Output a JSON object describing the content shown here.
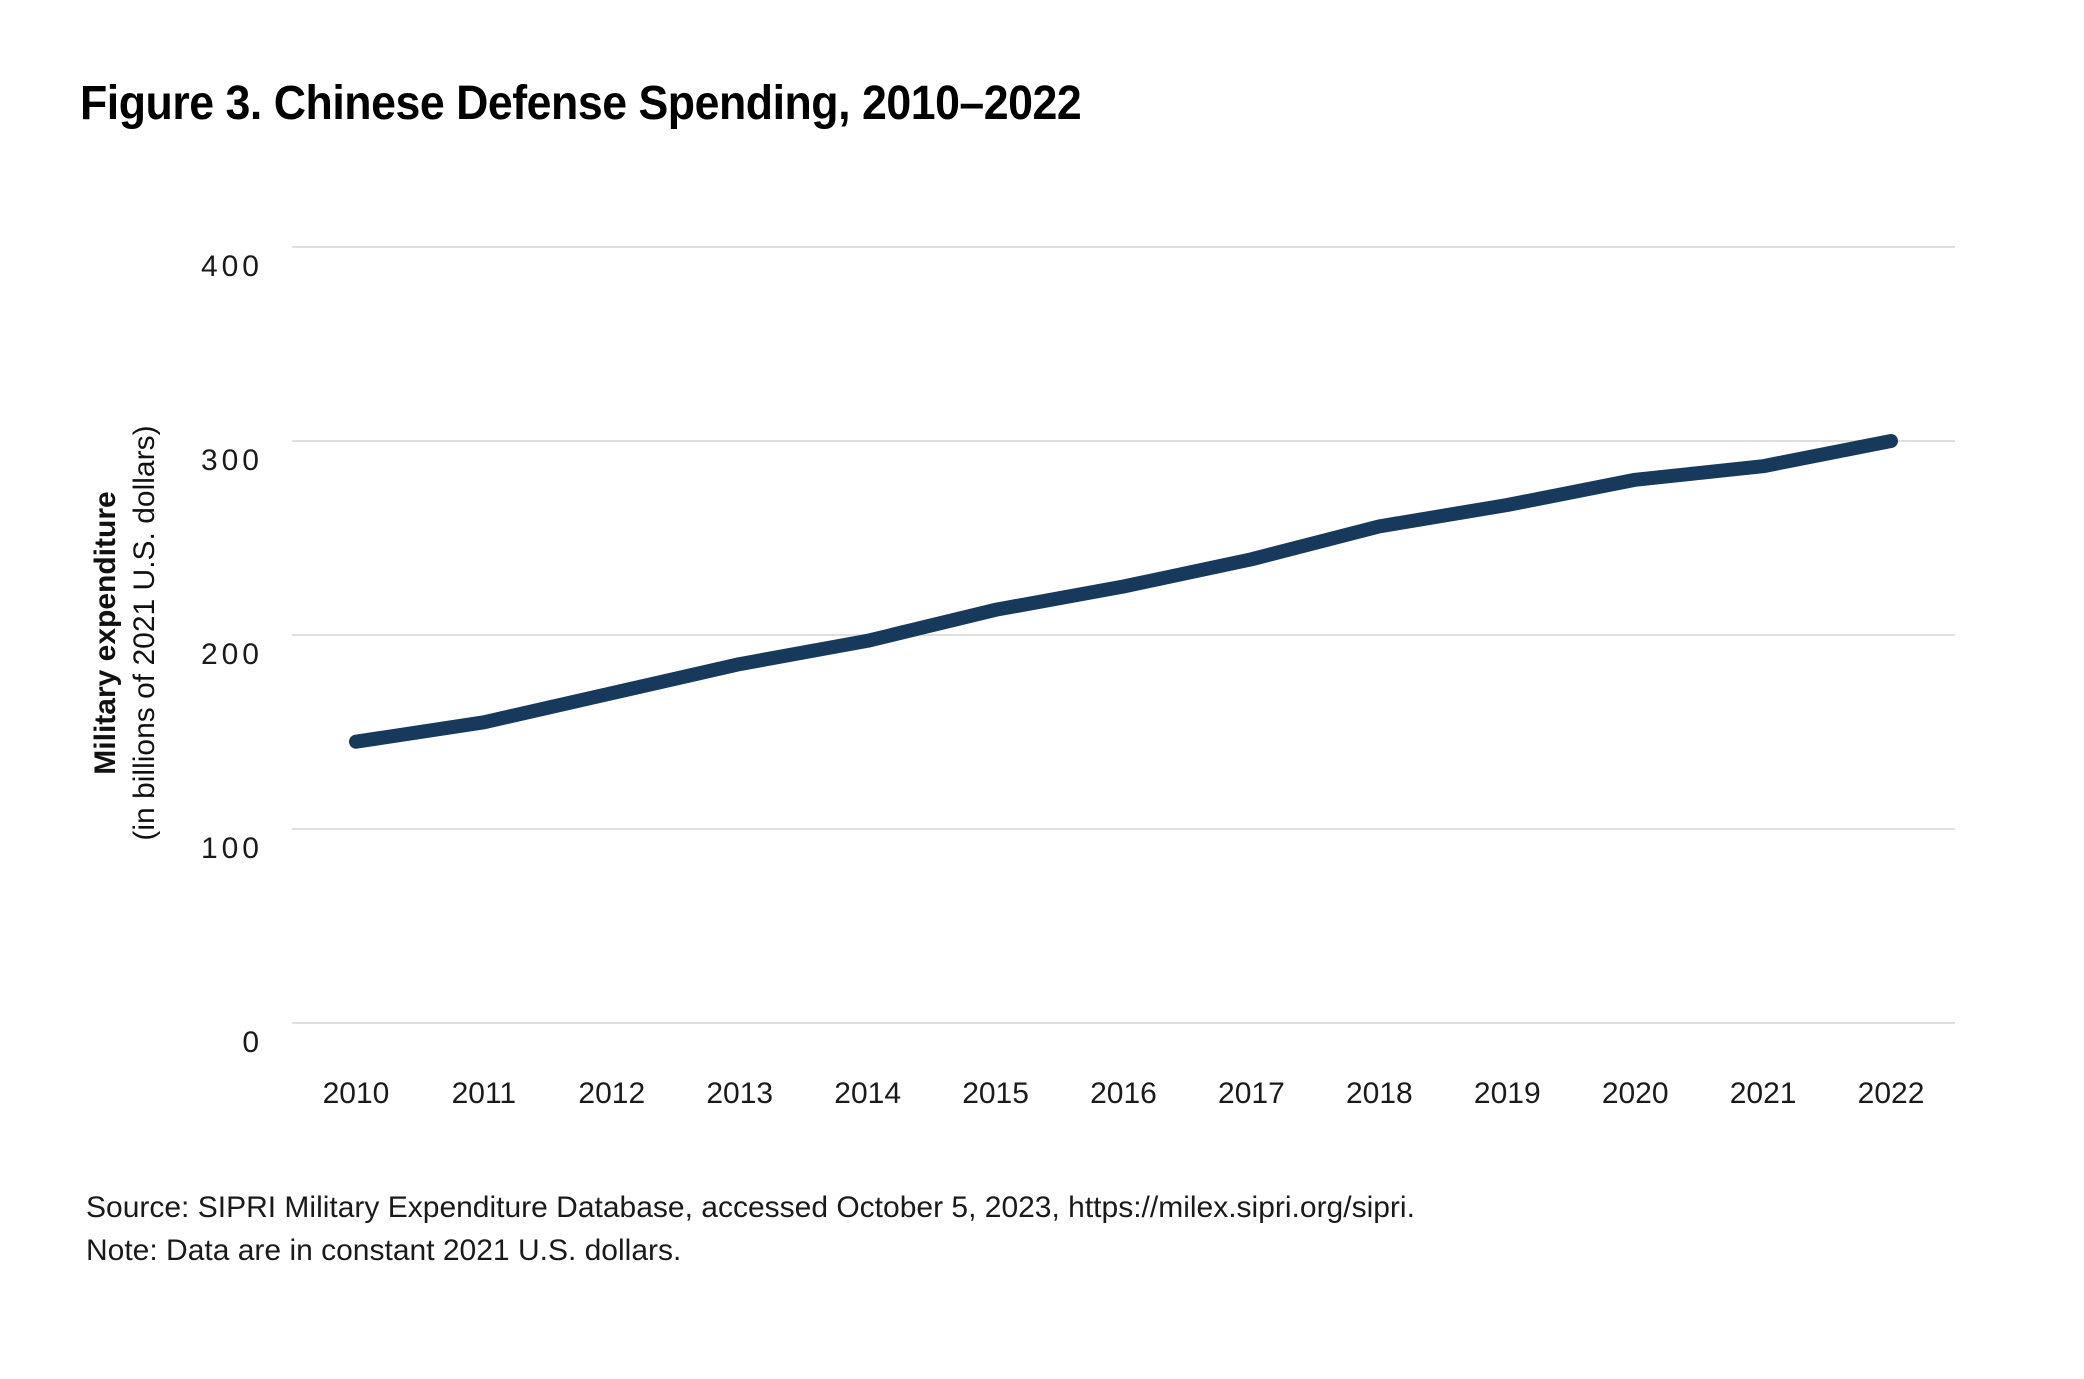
{
  "figure": {
    "title": "Figure 3. Chinese Defense Spending, 2010–2022",
    "source_line": "Source: SIPRI Military Expenditure Database, accessed October 5, 2023, https://milex.sipri.org/sipri.",
    "note_line": "Note: Data are in constant 2021 U.S. dollars."
  },
  "chart_data": {
    "type": "line",
    "title": "Figure 3. Chinese Defense Spending, 2010–2022",
    "x": [
      2010,
      2011,
      2012,
      2013,
      2014,
      2015,
      2016,
      2017,
      2018,
      2019,
      2020,
      2021,
      2022
    ],
    "values": [
      145,
      155,
      170,
      185,
      197,
      213,
      225,
      239,
      256,
      267,
      280,
      287,
      300
    ],
    "xlabel": "",
    "ylabel": "Military expenditure",
    "ylabel_sub": "(in billions of 2021 U.S. dollars)",
    "ylim": [
      0,
      400
    ],
    "yticks": [
      0,
      100,
      200,
      300,
      400
    ],
    "grid": "horizontal",
    "legend_position": "none",
    "colors": {
      "line": "#17395c",
      "gridline": "#dfdfdf",
      "text": "#1a1a1a",
      "background": "#ffffff"
    }
  }
}
